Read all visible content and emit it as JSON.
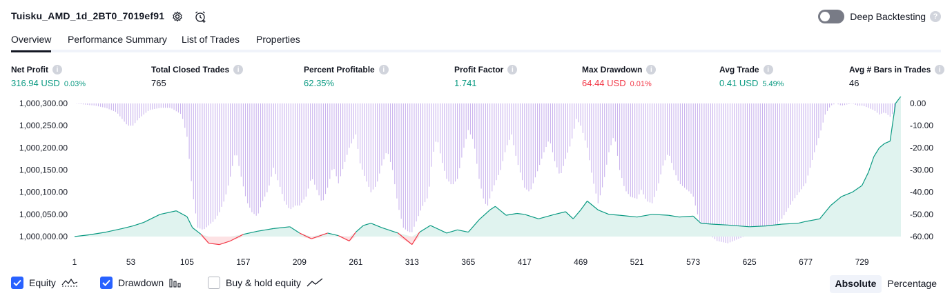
{
  "header": {
    "strategy_name": "Tuisku_AMD_1d_2BT0_7019ef91",
    "deep_backtesting_label": "Deep Backtesting",
    "help_glyph": "?"
  },
  "tabs": [
    {
      "label": "Overview",
      "active": true
    },
    {
      "label": "Performance Summary",
      "active": false
    },
    {
      "label": "List of Trades",
      "active": false
    },
    {
      "label": "Properties",
      "active": false
    }
  ],
  "metrics": [
    {
      "label": "Net Profit",
      "value": "316.94 USD",
      "pct": "0.03%",
      "color": "#089981"
    },
    {
      "label": "Total Closed Trades",
      "value": "765",
      "pct": "",
      "color": "#131722"
    },
    {
      "label": "Percent Profitable",
      "value": "62.35%",
      "pct": "",
      "color": "#089981"
    },
    {
      "label": "Profit Factor",
      "value": "1.741",
      "pct": "",
      "color": "#089981"
    },
    {
      "label": "Max Drawdown",
      "value": "64.44 USD",
      "pct": "0.01%",
      "color": "#f23645"
    },
    {
      "label": "Avg Trade",
      "value": "0.41 USD",
      "pct": "5.49%",
      "color": "#089981"
    },
    {
      "label": "Avg # Bars in Trades",
      "value": "46",
      "pct": "",
      "color": "#131722"
    }
  ],
  "info_glyph": "i",
  "chart_data": {
    "type": "area",
    "left_axis": {
      "ticks": [
        "1,000,000.00",
        "1,000,050.00",
        "1,000,100.00",
        "1,000,150.00",
        "1,000,200.00",
        "1,000,250.00",
        "1,000,300.00"
      ],
      "range": [
        1000000,
        1000300
      ]
    },
    "right_axis": {
      "ticks": [
        "0.00",
        "-10.00",
        "-20.00",
        "-30.00",
        "-40.00",
        "-50.00",
        "-60.00"
      ],
      "range": [
        -60,
        0
      ]
    },
    "x_ticks": [
      "1",
      "53",
      "105",
      "157",
      "209",
      "261",
      "313",
      "365",
      "417",
      "469",
      "521",
      "573",
      "625",
      "677",
      "729"
    ],
    "x_range": [
      1,
      765
    ],
    "equity": {
      "x": [
        1,
        15,
        30,
        45,
        55,
        65,
        80,
        95,
        105,
        110,
        118,
        125,
        135,
        145,
        157,
        170,
        185,
        200,
        209,
        220,
        235,
        245,
        255,
        261,
        268,
        275,
        285,
        300,
        313,
        320,
        330,
        345,
        355,
        365,
        375,
        385,
        390,
        395,
        400,
        410,
        417,
        430,
        445,
        455,
        462,
        469,
        475,
        485,
        495,
        505,
        521,
        535,
        550,
        560,
        573,
        580,
        590,
        605,
        625,
        640,
        655,
        670,
        677,
        690,
        700,
        710,
        720,
        729,
        735,
        740,
        745,
        750,
        755,
        760,
        765
      ],
      "y": [
        1000000,
        1000004,
        1000010,
        1000018,
        1000024,
        1000032,
        1000050,
        1000058,
        1000045,
        1000020,
        1000005,
        999985,
        999982,
        999990,
        1000005,
        1000012,
        1000018,
        1000022,
        1000008,
        999995,
        1000008,
        1000002,
        999990,
        1000010,
        1000025,
        1000030,
        1000020,
        1000008,
        999982,
        1000010,
        1000025,
        1000008,
        1000015,
        1000010,
        1000038,
        1000060,
        1000068,
        1000058,
        1000048,
        1000052,
        1000050,
        1000040,
        1000050,
        1000056,
        1000040,
        1000060,
        1000080,
        1000060,
        1000050,
        1000048,
        1000044,
        1000050,
        1000048,
        1000044,
        1000046,
        1000030,
        1000028,
        1000026,
        1000022,
        1000024,
        1000028,
        1000030,
        1000034,
        1000040,
        1000070,
        1000090,
        1000100,
        1000115,
        1000145,
        1000180,
        1000200,
        1000210,
        1000215,
        1000300,
        1000316
      ]
    },
    "drawdown": {
      "x": [
        1,
        20,
        30,
        40,
        50,
        55,
        60,
        70,
        80,
        90,
        100,
        105,
        110,
        115,
        120,
        125,
        130,
        135,
        140,
        145,
        150,
        155,
        160,
        165,
        170,
        175,
        180,
        185,
        190,
        195,
        200,
        205,
        209,
        215,
        220,
        225,
        230,
        235,
        240,
        245,
        250,
        255,
        261,
        265,
        270,
        275,
        280,
        285,
        290,
        295,
        300,
        305,
        310,
        313,
        318,
        322,
        328,
        332,
        336,
        340,
        345,
        350,
        355,
        360,
        365,
        370,
        375,
        380,
        383,
        388,
        395,
        400,
        405,
        410,
        417,
        422,
        428,
        435,
        440,
        445,
        450,
        455,
        460,
        465,
        469,
        475,
        480,
        485,
        490,
        495,
        500,
        505,
        510,
        515,
        521,
        525,
        530,
        535,
        540,
        545,
        550,
        555,
        560,
        565,
        570,
        573,
        578,
        585,
        595,
        605,
        615,
        625,
        635,
        645,
        655,
        665,
        677,
        685,
        690,
        695,
        700,
        705,
        710,
        720,
        725,
        730,
        735,
        740,
        745,
        750,
        755,
        760,
        765
      ],
      "y": [
        0,
        -1,
        -2,
        -4,
        -10,
        -10,
        -7,
        -3,
        -2,
        -2,
        -5,
        -15,
        -40,
        -56,
        -57,
        -55,
        -53,
        -49,
        -43,
        -33,
        -21,
        -33,
        -44,
        -49,
        -51,
        -44,
        -39,
        -29,
        -36,
        -44,
        -48,
        -46,
        -46,
        -42,
        -33,
        -39,
        -45,
        -38,
        -28,
        -36,
        -28,
        -20,
        -14,
        -27,
        -34,
        -40,
        -37,
        -28,
        -21,
        -30,
        -46,
        -56,
        -58,
        -58,
        -52,
        -47,
        -42,
        -24,
        -15,
        -25,
        -34,
        -37,
        -34,
        -22,
        -12,
        -17,
        -34,
        -45,
        -46,
        -38,
        -30,
        -20,
        -14,
        -26,
        -38,
        -40,
        -32,
        -22,
        -16,
        -26,
        -33,
        -25,
        -18,
        -7,
        -10,
        -20,
        -34,
        -45,
        -36,
        -22,
        -14,
        -30,
        -39,
        -42,
        -43,
        -39,
        -44,
        -45,
        -38,
        -28,
        -22,
        -30,
        -36,
        -38,
        -40,
        -42,
        -52,
        -58,
        -62,
        -63,
        -61,
        -59,
        -60,
        -58,
        -52,
        -44,
        -36,
        -22,
        -14,
        -5,
        -1,
        0,
        -1,
        0,
        -1,
        -1,
        -2,
        -3,
        -5,
        -4,
        -6,
        -3,
        0
      ]
    },
    "colors": {
      "equity_up": "#089981",
      "equity_down": "#f23645",
      "equity_fill": "#e0f3ef",
      "drawdown_bar": "#c9b3ee",
      "below_start_line": "#2962ff"
    }
  },
  "legend": {
    "equity": {
      "label": "Equity",
      "checked": true
    },
    "drawdown": {
      "label": "Drawdown",
      "checked": true
    },
    "buy_hold": {
      "label": "Buy & hold equity",
      "checked": false
    }
  },
  "scale_toggle": {
    "absolute": "Absolute",
    "percentage": "Percentage",
    "active": "absolute"
  }
}
